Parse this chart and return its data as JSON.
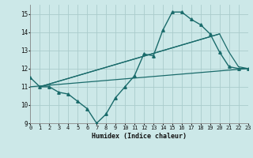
{
  "xlabel": "Humidex (Indice chaleur)",
  "xlim": [
    0,
    23
  ],
  "ylim": [
    9,
    15.5
  ],
  "yticks": [
    9,
    10,
    11,
    12,
    13,
    14,
    15
  ],
  "xticks": [
    0,
    1,
    2,
    3,
    4,
    5,
    6,
    7,
    8,
    9,
    10,
    11,
    12,
    13,
    14,
    15,
    16,
    17,
    18,
    19,
    20,
    21,
    22,
    23
  ],
  "bg_color": "#cce8e8",
  "grid_color": "#aacccc",
  "line_color": "#1a6b6b",
  "series": [
    {
      "x": [
        0,
        1,
        2,
        3,
        4,
        5,
        6,
        7,
        8,
        9,
        10,
        11,
        12,
        13,
        14,
        15,
        16,
        17,
        18,
        19,
        20,
        21,
        22,
        23
      ],
      "y": [
        11.5,
        11.0,
        11.0,
        10.7,
        10.6,
        10.2,
        9.8,
        9.0,
        9.5,
        10.4,
        11.0,
        11.6,
        12.8,
        12.7,
        14.1,
        15.1,
        15.1,
        14.7,
        14.4,
        13.9,
        12.9,
        12.1,
        12.0,
        12.0
      ],
      "marker": "^",
      "markersize": 2.5,
      "linewidth": 1.0
    },
    {
      "x": [
        0,
        23
      ],
      "y": [
        11.0,
        12.0
      ],
      "marker": null,
      "markersize": 0,
      "linewidth": 0.9
    },
    {
      "x": [
        1,
        20
      ],
      "y": [
        11.0,
        13.9
      ],
      "marker": null,
      "markersize": 0,
      "linewidth": 0.9
    },
    {
      "x": [
        1,
        20,
        21,
        22,
        23
      ],
      "y": [
        11.0,
        13.9,
        12.9,
        12.1,
        12.0
      ],
      "marker": null,
      "markersize": 0,
      "linewidth": 0.9
    }
  ]
}
